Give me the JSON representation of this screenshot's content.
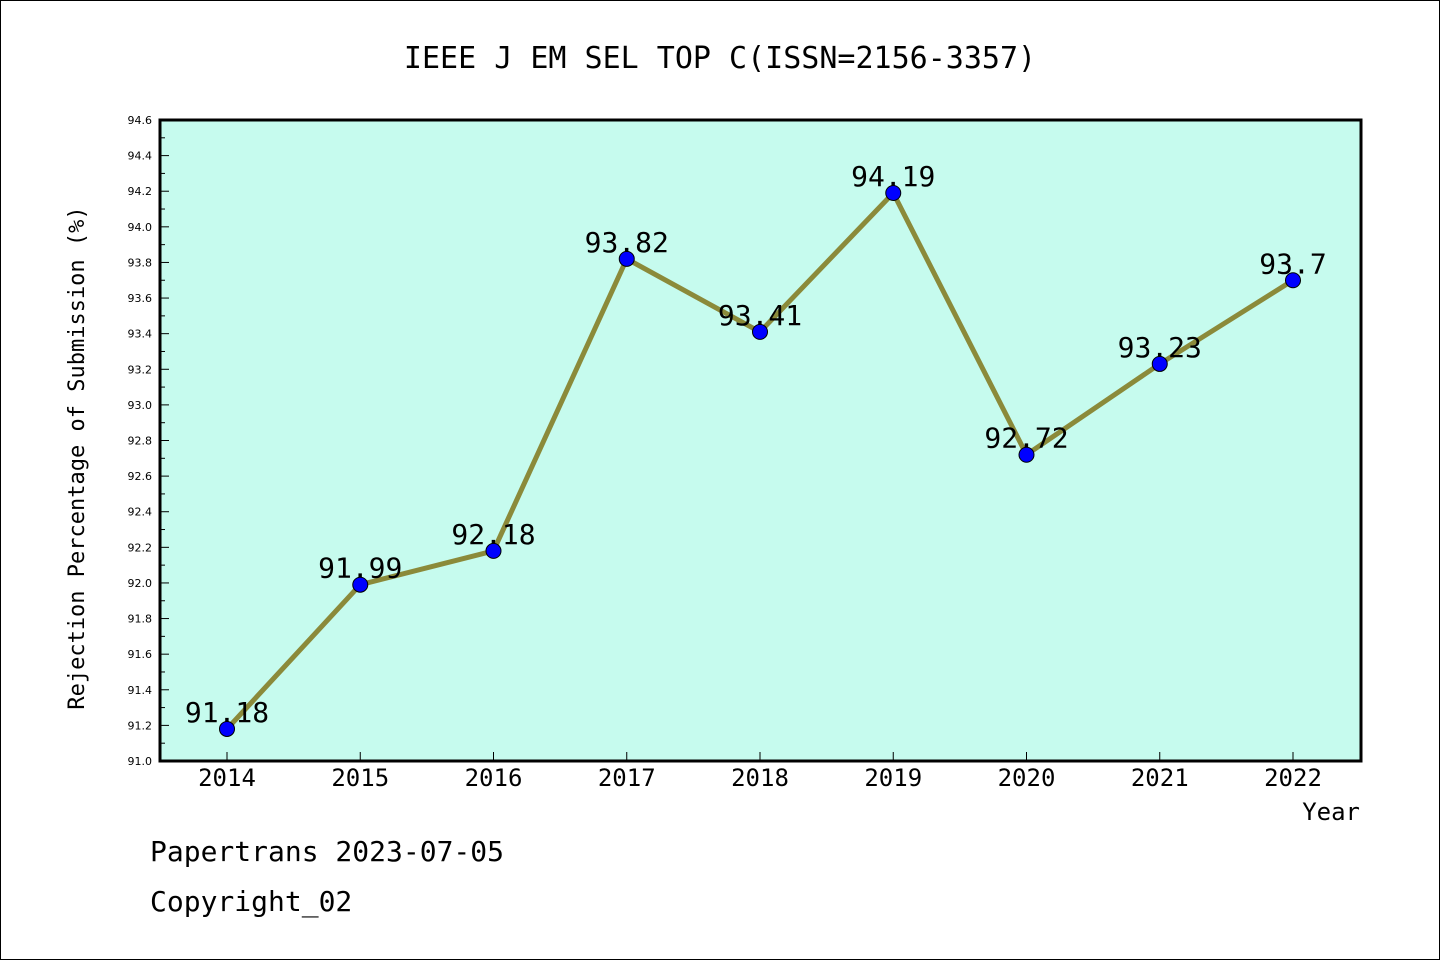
{
  "chart_data": {
    "type": "line",
    "title": "IEEE J EM SEL TOP C(ISSN=2156-3357)",
    "xlabel": "Year",
    "ylabel": "Rejection Percentage of Submission (%)",
    "categories": [
      "2014",
      "2015",
      "2016",
      "2017",
      "2018",
      "2019",
      "2020",
      "2021",
      "2022"
    ],
    "values": [
      91.18,
      91.99,
      92.18,
      93.82,
      93.41,
      94.19,
      92.72,
      93.23,
      93.7
    ],
    "data_labels": [
      "91.18",
      "91.99",
      "92.18",
      "93.82",
      "93.41",
      "94.19",
      "92.72",
      "93.23",
      "93.7"
    ],
    "ylim": [
      91.0,
      94.6
    ],
    "yticks": [
      "91.0",
      "91.2",
      "91.4",
      "91.6",
      "91.8",
      "92.0",
      "92.2",
      "92.4",
      "92.6",
      "92.8",
      "93.0",
      "93.2",
      "93.4",
      "93.6",
      "93.8",
      "94.0",
      "94.2",
      "94.4",
      "94.6"
    ],
    "grid": false,
    "colors": {
      "plot_bg": "#c6fbee",
      "line": "#8b8a3a",
      "marker": "#0000ff"
    }
  },
  "footer": {
    "line1": "Papertrans 2023-07-05",
    "line2": "Copyright_02"
  }
}
